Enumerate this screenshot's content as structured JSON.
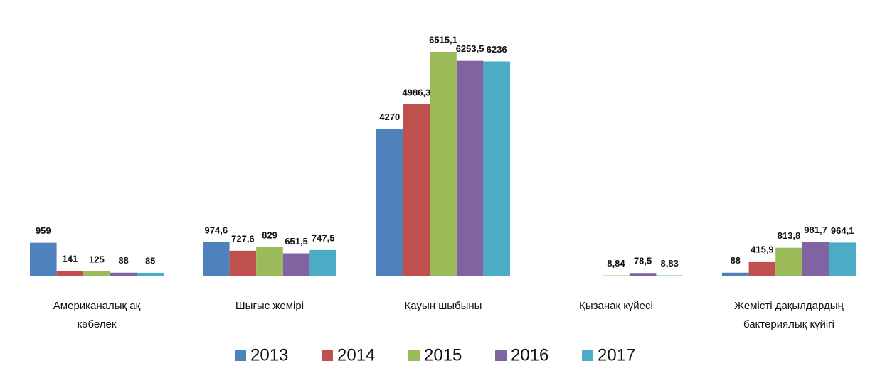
{
  "chart_data": {
    "type": "bar",
    "categories": [
      "Американалық ақ көбелек",
      "Шығыс жемірі",
      "Қауын шыбыны",
      "Қызанақ күйесі",
      "Жемісті дақылдардың бактериялық күйігі"
    ],
    "series": [
      {
        "name": "2013",
        "color": "#4f81bd",
        "values": [
          959,
          974.6,
          4270,
          null,
          88
        ],
        "value_labels": [
          "959",
          "974,6",
          "4270",
          null,
          "88"
        ]
      },
      {
        "name": "2014",
        "color": "#c0504d",
        "values": [
          141,
          727.6,
          4986.3,
          null,
          415.9
        ],
        "value_labels": [
          "141",
          "727,6",
          "4986,3",
          null,
          "415,9"
        ]
      },
      {
        "name": "2015",
        "color": "#9bbb59",
        "values": [
          125,
          829,
          6515.1,
          8.84,
          813.8
        ],
        "value_labels": [
          "125",
          "829",
          "6515,1",
          "8,84",
          "813,8"
        ]
      },
      {
        "name": "2016",
        "color": "#8064a2",
        "values": [
          88,
          651.5,
          6253.5,
          78.5,
          981.7
        ],
        "value_labels": [
          "88",
          "651,5",
          "6253,5",
          "78,5",
          "981,7"
        ]
      },
      {
        "name": "2017",
        "color": "#4bacc6",
        "values": [
          85,
          747.5,
          6236,
          8.83,
          964.1
        ],
        "value_labels": [
          "85",
          "747,5",
          "6236",
          "8,83",
          "964,1"
        ]
      }
    ],
    "legend": "bottom"
  }
}
